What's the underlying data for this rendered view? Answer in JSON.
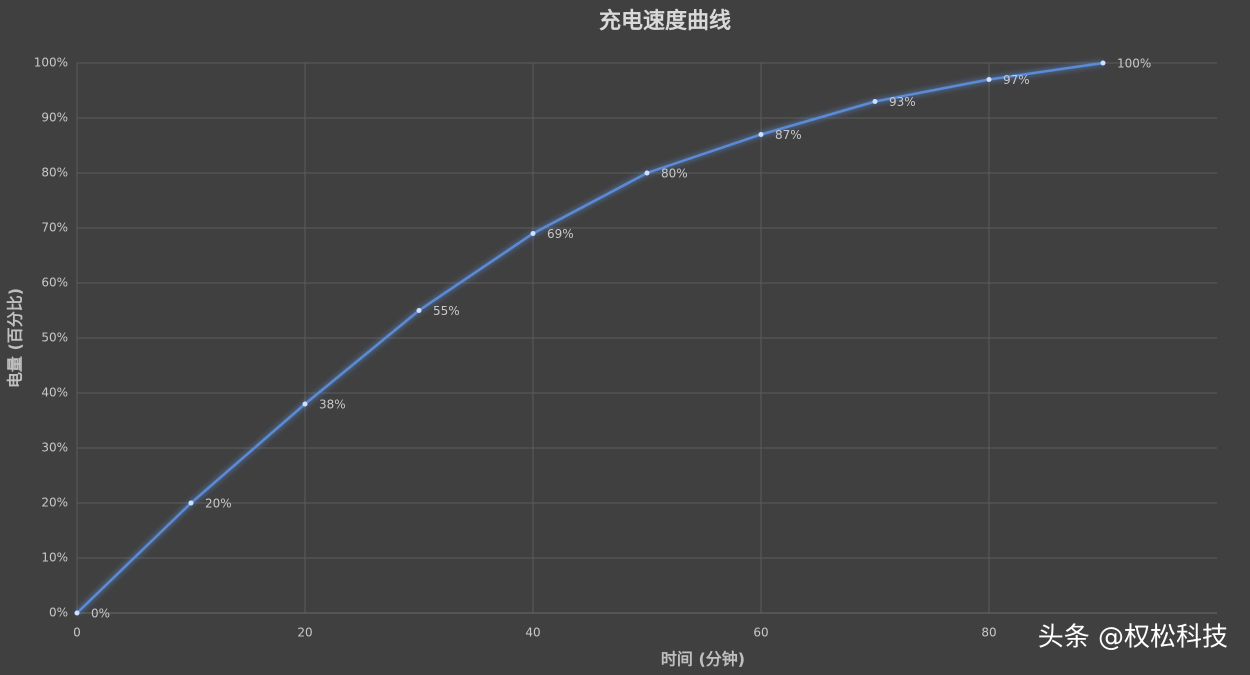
{
  "chart_data": {
    "type": "line",
    "title": "充电速度曲线",
    "x_label": "时间 (分钟)",
    "y_label": "电量 (百分比)",
    "x": [
      0,
      10,
      20,
      30,
      40,
      50,
      60,
      70,
      80,
      90
    ],
    "series": [
      {
        "name": "电量",
        "color": "#5b8bd6",
        "values": [
          0,
          20,
          38,
          55,
          69,
          80,
          87,
          93,
          97,
          100
        ],
        "value_labels": [
          "0%",
          "20%",
          "38%",
          "55%",
          "69%",
          "80%",
          "87%",
          "93%",
          "97%",
          "100%"
        ]
      }
    ],
    "xlim": [
      0,
      100
    ],
    "xticks": [
      0,
      20,
      40,
      60,
      80
    ],
    "ylim": [
      0,
      100
    ],
    "yticks": [
      {
        "value": 0,
        "label": "0%"
      },
      {
        "value": 10,
        "label": "10%"
      },
      {
        "value": 20,
        "label": "20%"
      },
      {
        "value": 30,
        "label": "30%"
      },
      {
        "value": 40,
        "label": "40%"
      },
      {
        "value": 50,
        "label": "50%"
      },
      {
        "value": 60,
        "label": "60%"
      },
      {
        "value": 70,
        "label": "70%"
      },
      {
        "value": 80,
        "label": "80%"
      },
      {
        "value": 90,
        "label": "90%"
      },
      {
        "value": 100,
        "label": "100%"
      }
    ],
    "grid": true,
    "watermark": "头条 @权松科技"
  }
}
